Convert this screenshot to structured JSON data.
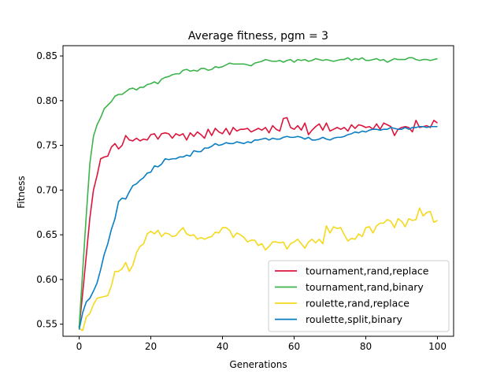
{
  "chart_data": {
    "type": "line",
    "title": "Average fitness, pgm = 3",
    "xlabel": "Generations",
    "ylabel": "Fitness",
    "xlim": [
      -4.5,
      104.5
    ],
    "ylim": [
      0.5365,
      0.8615
    ],
    "xticks": [
      0,
      20,
      40,
      60,
      80,
      100
    ],
    "yticks": [
      0.55,
      0.6,
      0.65,
      0.7,
      0.75,
      0.8,
      0.85
    ],
    "ytick_labels": [
      "0.55",
      "0.60",
      "0.65",
      "0.70",
      "0.75",
      "0.80",
      "0.85"
    ],
    "grid": false,
    "legend_position": "lower-right",
    "x": [
      0,
      1,
      2,
      3,
      4,
      5,
      6,
      7,
      8,
      9,
      10,
      11,
      12,
      13,
      14,
      15,
      16,
      17,
      18,
      19,
      20,
      21,
      22,
      23,
      24,
      25,
      26,
      27,
      28,
      29,
      30,
      31,
      32,
      33,
      34,
      35,
      36,
      37,
      38,
      39,
      40,
      41,
      42,
      43,
      44,
      45,
      46,
      47,
      48,
      49,
      50,
      51,
      52,
      53,
      54,
      55,
      56,
      57,
      58,
      59,
      60,
      61,
      62,
      63,
      64,
      65,
      66,
      67,
      68,
      69,
      70,
      71,
      72,
      73,
      74,
      75,
      76,
      77,
      78,
      79,
      80,
      81,
      82,
      83,
      84,
      85,
      86,
      87,
      88,
      89,
      90,
      91,
      92,
      93,
      94,
      95,
      96,
      97,
      98,
      99,
      100
    ],
    "series": [
      {
        "name": "tournament,rand,replace",
        "color": "#dc143c",
        "values": [
          0.546,
          0.585,
          0.627,
          0.669,
          0.7,
          0.716,
          0.735,
          0.737,
          0.738,
          0.748,
          0.752,
          0.746,
          0.75,
          0.761,
          0.756,
          0.755,
          0.758,
          0.755,
          0.757,
          0.756,
          0.762,
          0.763,
          0.757,
          0.763,
          0.764,
          0.763,
          0.758,
          0.763,
          0.761,
          0.763,
          0.756,
          0.764,
          0.76,
          0.765,
          0.762,
          0.758,
          0.768,
          0.761,
          0.769,
          0.765,
          0.763,
          0.769,
          0.762,
          0.77,
          0.766,
          0.768,
          0.768,
          0.769,
          0.765,
          0.767,
          0.769,
          0.767,
          0.77,
          0.764,
          0.772,
          0.768,
          0.766,
          0.78,
          0.781,
          0.77,
          0.768,
          0.772,
          0.767,
          0.775,
          0.762,
          0.767,
          0.771,
          0.774,
          0.767,
          0.775,
          0.766,
          0.768,
          0.77,
          0.768,
          0.77,
          0.766,
          0.773,
          0.769,
          0.773,
          0.772,
          0.77,
          0.771,
          0.768,
          0.774,
          0.768,
          0.775,
          0.773,
          0.771,
          0.761,
          0.768,
          0.77,
          0.771,
          0.77,
          0.765,
          0.778,
          0.77,
          0.771,
          0.772,
          0.77,
          0.778,
          0.775
        ]
      },
      {
        "name": "tournament,rand,binary",
        "color": "#3cb44b",
        "values": [
          0.546,
          0.61,
          0.672,
          0.73,
          0.76,
          0.773,
          0.781,
          0.791,
          0.795,
          0.799,
          0.805,
          0.807,
          0.807,
          0.81,
          0.813,
          0.814,
          0.812,
          0.815,
          0.815,
          0.818,
          0.819,
          0.821,
          0.819,
          0.824,
          0.826,
          0.827,
          0.829,
          0.83,
          0.83,
          0.834,
          0.835,
          0.833,
          0.834,
          0.833,
          0.836,
          0.836,
          0.834,
          0.835,
          0.838,
          0.837,
          0.838,
          0.84,
          0.842,
          0.841,
          0.841,
          0.841,
          0.841,
          0.84,
          0.839,
          0.842,
          0.843,
          0.844,
          0.846,
          0.845,
          0.844,
          0.844,
          0.845,
          0.843,
          0.845,
          0.846,
          0.843,
          0.846,
          0.845,
          0.846,
          0.844,
          0.845,
          0.847,
          0.846,
          0.845,
          0.846,
          0.845,
          0.844,
          0.845,
          0.846,
          0.846,
          0.848,
          0.845,
          0.847,
          0.846,
          0.848,
          0.845,
          0.845,
          0.846,
          0.847,
          0.845,
          0.846,
          0.843,
          0.845,
          0.847,
          0.846,
          0.846,
          0.846,
          0.848,
          0.848,
          0.846,
          0.845,
          0.846,
          0.846,
          0.845,
          0.846,
          0.847
        ]
      },
      {
        "name": "roulette,rand,replace",
        "color": "#f4d91c",
        "values": [
          0.545,
          0.543,
          0.558,
          0.562,
          0.572,
          0.579,
          0.58,
          0.581,
          0.582,
          0.593,
          0.609,
          0.609,
          0.612,
          0.619,
          0.609,
          0.616,
          0.63,
          0.637,
          0.64,
          0.651,
          0.654,
          0.651,
          0.655,
          0.648,
          0.652,
          0.651,
          0.648,
          0.649,
          0.654,
          0.658,
          0.651,
          0.649,
          0.65,
          0.645,
          0.647,
          0.645,
          0.647,
          0.648,
          0.653,
          0.652,
          0.658,
          0.658,
          0.655,
          0.647,
          0.652,
          0.65,
          0.647,
          0.642,
          0.644,
          0.644,
          0.638,
          0.64,
          0.633,
          0.637,
          0.642,
          0.642,
          0.641,
          0.642,
          0.634,
          0.64,
          0.642,
          0.645,
          0.64,
          0.635,
          0.642,
          0.645,
          0.641,
          0.645,
          0.64,
          0.66,
          0.652,
          0.659,
          0.657,
          0.658,
          0.65,
          0.643,
          0.646,
          0.645,
          0.651,
          0.648,
          0.658,
          0.659,
          0.652,
          0.66,
          0.663,
          0.663,
          0.667,
          0.665,
          0.658,
          0.668,
          0.665,
          0.659,
          0.668,
          0.666,
          0.667,
          0.68,
          0.671,
          0.675,
          0.676,
          0.664,
          0.666
        ]
      },
      {
        "name": "roulette,split,binary",
        "color": "#0a7ec2",
        "values": [
          0.544,
          0.563,
          0.575,
          0.579,
          0.587,
          0.596,
          0.611,
          0.628,
          0.64,
          0.656,
          0.668,
          0.687,
          0.691,
          0.69,
          0.698,
          0.705,
          0.707,
          0.711,
          0.714,
          0.719,
          0.72,
          0.727,
          0.726,
          0.729,
          0.735,
          0.734,
          0.735,
          0.735,
          0.737,
          0.737,
          0.739,
          0.738,
          0.744,
          0.743,
          0.743,
          0.747,
          0.747,
          0.749,
          0.752,
          0.75,
          0.751,
          0.753,
          0.752,
          0.752,
          0.754,
          0.753,
          0.752,
          0.754,
          0.753,
          0.756,
          0.756,
          0.757,
          0.758,
          0.756,
          0.758,
          0.757,
          0.757,
          0.759,
          0.76,
          0.759,
          0.759,
          0.76,
          0.759,
          0.757,
          0.759,
          0.756,
          0.756,
          0.757,
          0.759,
          0.757,
          0.756,
          0.758,
          0.759,
          0.759,
          0.76,
          0.762,
          0.763,
          0.765,
          0.764,
          0.766,
          0.765,
          0.767,
          0.768,
          0.768,
          0.767,
          0.768,
          0.768,
          0.77,
          0.769,
          0.768,
          0.768,
          0.77,
          0.768,
          0.77,
          0.77,
          0.771,
          0.771,
          0.77,
          0.771,
          0.771,
          0.771
        ]
      }
    ]
  }
}
